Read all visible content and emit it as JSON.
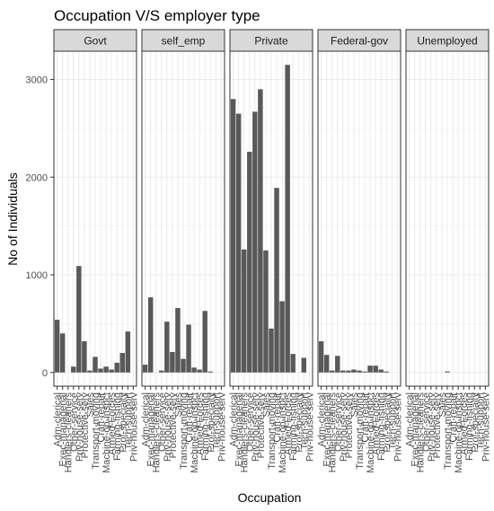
{
  "chart_data": {
    "type": "bar",
    "title": "Occupation V/S employer type",
    "xlabel": "Occupation",
    "ylabel": "No of Individuals",
    "ylim": [
      -140,
      3290
    ],
    "yticks": [
      0,
      1000,
      2000,
      3000
    ],
    "grid": true,
    "theme": "bw",
    "bar_color": "#595959",
    "categories": [
      "?",
      "Adm-clerical",
      "Armed-Forces",
      "Craft-repair",
      "Exec-managerial",
      "Farming-fishing",
      "Handlers-cleaners",
      "Machine-op-inspct",
      "Other-service",
      "Priv-house-serv",
      "Prof-specialty",
      "Protective-serv",
      "Sales",
      "Tech-support",
      "Transport-moving"
    ],
    "tick_labels": [
      "Adm-clerical",
      "Exec-managerial",
      "Handlers-cleaners",
      "Other-service",
      "Priv-house-serv",
      "Protective-serv",
      "Sales",
      "Transport-moving",
      "Craft-repair",
      "Machine-op-inspct",
      "Armed-Forces",
      "Farming-fishing",
      "Prof-specialty",
      "Tech-support",
      "Priv-house-serv"
    ],
    "facets": [
      {
        "name": "Govt",
        "values": [
          540,
          400,
          0,
          60,
          1090,
          320,
          20,
          160,
          40,
          60,
          30,
          100,
          200,
          420,
          0
        ]
      },
      {
        "name": "self_emp",
        "values": [
          80,
          770,
          0,
          20,
          520,
          210,
          660,
          140,
          490,
          50,
          30,
          630,
          10,
          0,
          0
        ]
      },
      {
        "name": "Private",
        "values": [
          2800,
          2650,
          1260,
          2260,
          2670,
          2900,
          1250,
          450,
          1890,
          730,
          3150,
          190,
          0,
          150,
          0
        ]
      },
      {
        "name": "Federal-gov",
        "values": [
          320,
          180,
          20,
          170,
          20,
          20,
          30,
          20,
          10,
          70,
          70,
          30,
          10,
          0,
          0
        ]
      },
      {
        "name": "Unemployed",
        "values": [
          0,
          0,
          0,
          0,
          0,
          0,
          0,
          10,
          0,
          0,
          0,
          0,
          0,
          0,
          0
        ]
      }
    ]
  }
}
